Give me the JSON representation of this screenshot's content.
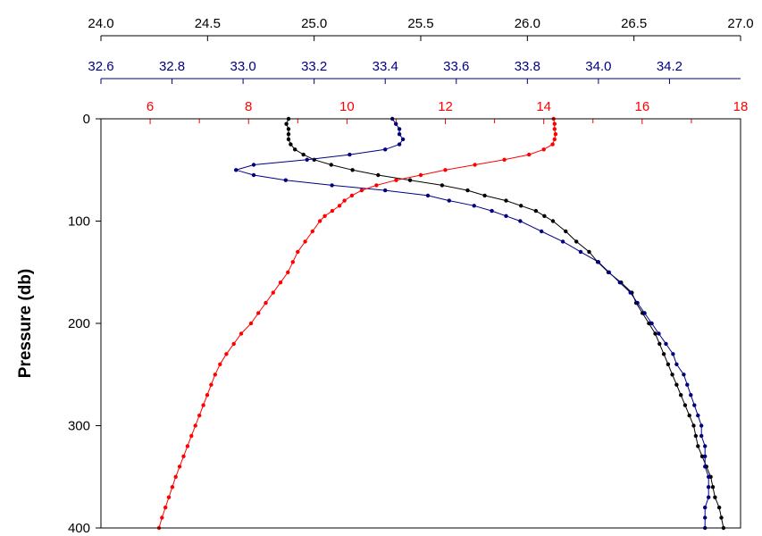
{
  "chart_data": {
    "type": "scatter",
    "title": "",
    "ylabel": "Pressure (db)",
    "ylim": [
      0,
      400
    ],
    "y_inverted": true,
    "y_ticks": [
      "0",
      "100",
      "200",
      "300",
      "400"
    ],
    "grid": false,
    "legend": "none",
    "axes": [
      {
        "id": "black",
        "color": "#000000",
        "range": [
          24.0,
          27.0
        ],
        "ticks": [
          24.0,
          24.5,
          25.0,
          25.5,
          26.0,
          26.5,
          27.0
        ],
        "tick_labels": [
          "24.0",
          "24.5",
          "25.0",
          "25.5",
          "26.0",
          "26.5",
          "27.0"
        ]
      },
      {
        "id": "navy",
        "color": "#000080",
        "range": [
          32.6,
          34.4
        ],
        "ticks": [
          32.6,
          32.8,
          33.0,
          33.2,
          33.4,
          33.6,
          33.8,
          34.0,
          34.2
        ],
        "tick_labels": [
          "32.6",
          "32.8",
          "33.0",
          "33.2",
          "33.4",
          "33.6",
          "33.8",
          "34.0",
          "34.2"
        ]
      },
      {
        "id": "red",
        "color": "#ff0000",
        "range": [
          5,
          18
        ],
        "ticks": [
          6,
          8,
          10,
          12,
          14,
          16,
          18
        ],
        "minor_ticks": [
          5,
          7,
          9,
          11,
          13,
          15,
          17
        ],
        "tick_labels": [
          "6",
          "8",
          "10",
          "12",
          "14",
          "16",
          "18"
        ]
      }
    ],
    "series": [
      {
        "axis": "black",
        "color": "#000000",
        "points": [
          [
            24.88,
            0
          ],
          [
            24.87,
            5
          ],
          [
            24.88,
            10
          ],
          [
            24.88,
            15
          ],
          [
            24.88,
            20
          ],
          [
            24.89,
            25
          ],
          [
            24.91,
            30
          ],
          [
            24.95,
            35
          ],
          [
            25.0,
            40
          ],
          [
            25.08,
            45
          ],
          [
            25.18,
            50
          ],
          [
            25.3,
            55
          ],
          [
            25.45,
            60
          ],
          [
            25.6,
            65
          ],
          [
            25.72,
            70
          ],
          [
            25.8,
            75
          ],
          [
            25.9,
            80
          ],
          [
            25.97,
            85
          ],
          [
            26.04,
            90
          ],
          [
            26.08,
            95
          ],
          [
            26.12,
            100
          ],
          [
            26.18,
            110
          ],
          [
            26.23,
            120
          ],
          [
            26.29,
            130
          ],
          [
            26.33,
            140
          ],
          [
            26.38,
            150
          ],
          [
            26.44,
            160
          ],
          [
            26.49,
            170
          ],
          [
            26.51,
            180
          ],
          [
            26.54,
            190
          ],
          [
            26.57,
            200
          ],
          [
            26.6,
            210
          ],
          [
            26.62,
            220
          ],
          [
            26.64,
            230
          ],
          [
            26.66,
            240
          ],
          [
            26.68,
            250
          ],
          [
            26.7,
            260
          ],
          [
            26.72,
            270
          ],
          [
            26.74,
            280
          ],
          [
            26.76,
            290
          ],
          [
            26.78,
            300
          ],
          [
            26.79,
            310
          ],
          [
            26.8,
            320
          ],
          [
            26.82,
            330
          ],
          [
            26.84,
            340
          ],
          [
            26.86,
            350
          ],
          [
            26.87,
            360
          ],
          [
            26.88,
            370
          ],
          [
            26.9,
            380
          ],
          [
            26.91,
            390
          ],
          [
            26.92,
            400
          ]
        ]
      },
      {
        "axis": "navy",
        "color": "#000080",
        "points": [
          [
            33.42,
            0
          ],
          [
            33.43,
            5
          ],
          [
            33.44,
            10
          ],
          [
            33.44,
            15
          ],
          [
            33.45,
            20
          ],
          [
            33.44,
            25
          ],
          [
            33.4,
            30
          ],
          [
            33.3,
            35
          ],
          [
            33.18,
            40
          ],
          [
            33.03,
            45
          ],
          [
            32.98,
            50
          ],
          [
            33.03,
            55
          ],
          [
            33.12,
            60
          ],
          [
            33.25,
            65
          ],
          [
            33.4,
            70
          ],
          [
            33.52,
            75
          ],
          [
            33.58,
            80
          ],
          [
            33.65,
            85
          ],
          [
            33.7,
            90
          ],
          [
            33.74,
            95
          ],
          [
            33.78,
            100
          ],
          [
            33.84,
            110
          ],
          [
            33.9,
            120
          ],
          [
            33.95,
            130
          ],
          [
            34.0,
            140
          ],
          [
            34.03,
            150
          ],
          [
            34.06,
            160
          ],
          [
            34.09,
            170
          ],
          [
            34.11,
            180
          ],
          [
            34.13,
            190
          ],
          [
            34.15,
            200
          ],
          [
            34.17,
            210
          ],
          [
            34.19,
            220
          ],
          [
            34.21,
            230
          ],
          [
            34.22,
            240
          ],
          [
            34.24,
            250
          ],
          [
            34.25,
            260
          ],
          [
            34.26,
            270
          ],
          [
            34.27,
            280
          ],
          [
            34.28,
            290
          ],
          [
            34.29,
            300
          ],
          [
            34.29,
            310
          ],
          [
            34.3,
            320
          ],
          [
            34.3,
            330
          ],
          [
            34.3,
            340
          ],
          [
            34.31,
            350
          ],
          [
            34.31,
            360
          ],
          [
            34.31,
            370
          ],
          [
            34.3,
            380
          ],
          [
            34.3,
            390
          ],
          [
            34.3,
            400
          ]
        ]
      },
      {
        "axis": "red",
        "color": "#ff0000",
        "points": [
          [
            14.2,
            0
          ],
          [
            14.22,
            5
          ],
          [
            14.22,
            10
          ],
          [
            14.24,
            15
          ],
          [
            14.22,
            20
          ],
          [
            14.18,
            25
          ],
          [
            14.0,
            30
          ],
          [
            13.7,
            35
          ],
          [
            13.2,
            40
          ],
          [
            12.6,
            45
          ],
          [
            12.0,
            50
          ],
          [
            11.5,
            55
          ],
          [
            11.0,
            60
          ],
          [
            10.6,
            65
          ],
          [
            10.3,
            70
          ],
          [
            10.1,
            75
          ],
          [
            9.95,
            80
          ],
          [
            9.85,
            85
          ],
          [
            9.7,
            90
          ],
          [
            9.55,
            95
          ],
          [
            9.45,
            100
          ],
          [
            9.3,
            110
          ],
          [
            9.15,
            120
          ],
          [
            9.0,
            130
          ],
          [
            8.9,
            140
          ],
          [
            8.8,
            150
          ],
          [
            8.65,
            160
          ],
          [
            8.5,
            170
          ],
          [
            8.35,
            180
          ],
          [
            8.2,
            190
          ],
          [
            8.05,
            200
          ],
          [
            7.85,
            210
          ],
          [
            7.7,
            220
          ],
          [
            7.55,
            230
          ],
          [
            7.42,
            240
          ],
          [
            7.32,
            250
          ],
          [
            7.24,
            260
          ],
          [
            7.16,
            270
          ],
          [
            7.08,
            280
          ],
          [
            7.0,
            290
          ],
          [
            6.92,
            300
          ],
          [
            6.84,
            310
          ],
          [
            6.76,
            320
          ],
          [
            6.68,
            330
          ],
          [
            6.6,
            340
          ],
          [
            6.52,
            350
          ],
          [
            6.45,
            360
          ],
          [
            6.38,
            370
          ],
          [
            6.31,
            380
          ],
          [
            6.24,
            390
          ],
          [
            6.18,
            400
          ]
        ]
      }
    ]
  }
}
